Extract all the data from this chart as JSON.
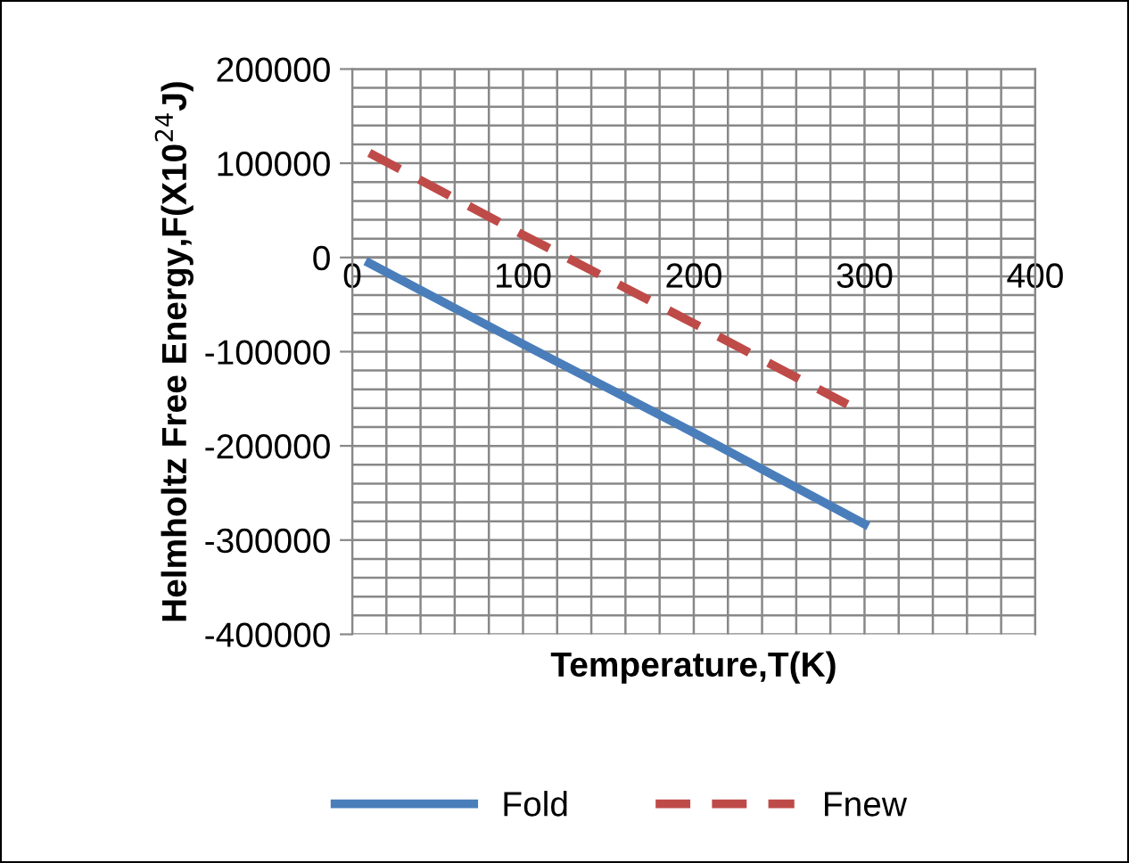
{
  "chart_data": {
    "type": "line",
    "xlabel": "Temperature,T(K)",
    "ylabel": "Helmholtz Free Energy,F(X10$^{24}$J)",
    "xlim": [
      0,
      400
    ],
    "xticks": [
      0,
      100,
      200,
      300,
      400
    ],
    "ylim": [
      -400000,
      200000
    ],
    "yticks": [
      -400000,
      -300000,
      -200000,
      -100000,
      0,
      100000,
      200000
    ],
    "grid": true,
    "legend": "bottom",
    "series": [
      {
        "name": "Fold",
        "color": "#4a7ebb",
        "line_style": "solid",
        "x": [
          10,
          100,
          200,
          300
        ],
        "values": [
          -6000,
          -92000,
          -186000,
          -283000
        ]
      },
      {
        "name": "Fnew",
        "color": "#be4b48",
        "line_style": "dashed",
        "x": [
          10,
          100,
          200,
          290
        ],
        "values": [
          111000,
          24000,
          -70000,
          -156000
        ]
      }
    ]
  }
}
